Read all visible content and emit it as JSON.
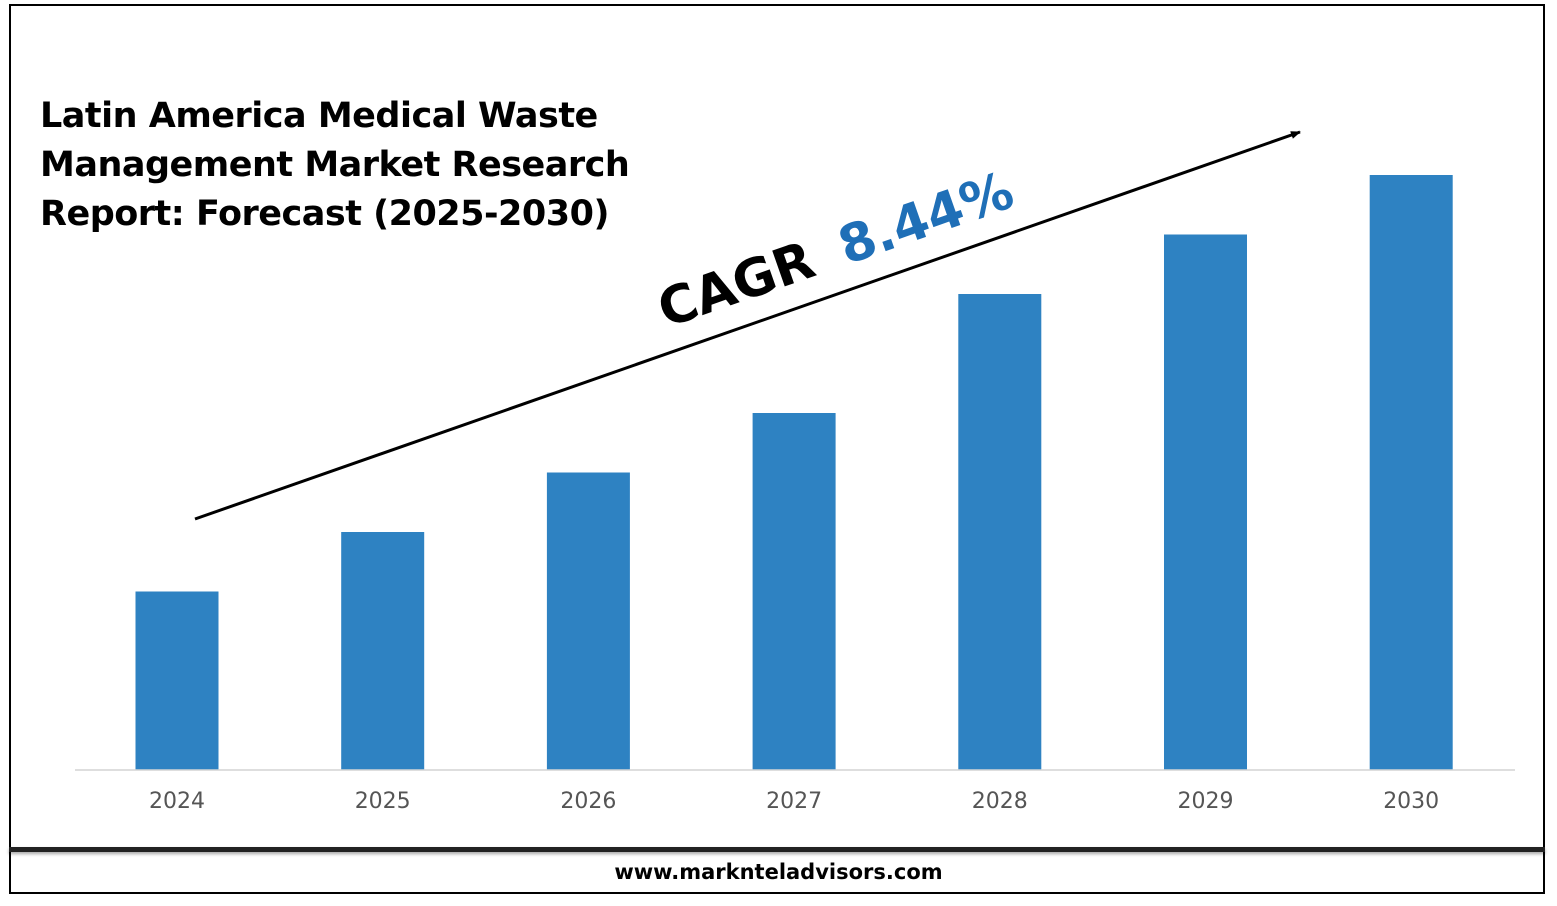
{
  "chart_data": {
    "type": "bar",
    "title_lines": [
      "Latin America Medical Waste",
      "Management Market Research",
      "Report: Forecast (2025-2030)"
    ],
    "categories": [
      "2024",
      "2025",
      "2026",
      "2027",
      "2028",
      "2029",
      "2030"
    ],
    "values": [
      30,
      40,
      50,
      60,
      80,
      90,
      100
    ],
    "ylim": [
      0,
      100
    ],
    "bar_color": "#2e82c2",
    "cagr_label": "CAGR",
    "cagr_value": "8.44%",
    "cagr_color": "#1f6fb7"
  },
  "footer": {
    "website": "www.marknteladvisors.com"
  }
}
